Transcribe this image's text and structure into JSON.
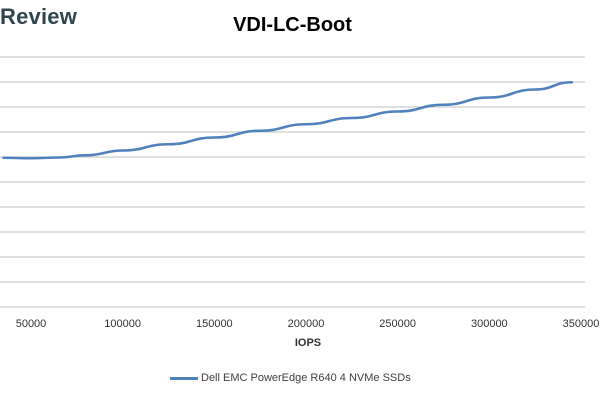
{
  "watermark": "Review",
  "chart_data": {
    "type": "line",
    "title": "VDI-LC-Boot",
    "xlabel": "IOPS",
    "ylabel": "",
    "xlim": [
      35000,
      350000
    ],
    "x_ticks": [
      50000,
      100000,
      150000,
      200000,
      250000,
      300000,
      350000
    ],
    "x_tick_labels": [
      "50000",
      "100000",
      "150000",
      "200000",
      "250000",
      "300000",
      "350000"
    ],
    "y_gridlines": 11,
    "grid": true,
    "legend": "bottom",
    "colors": {
      "series": "#4f81bd",
      "grid": "#bfbfbf"
    },
    "series": [
      {
        "name": "Dell EMC PowerEdge R640 4 NVMe SSDs",
        "x": [
          35000,
          50000,
          65000,
          80000,
          100000,
          125000,
          150000,
          175000,
          200000,
          225000,
          250000,
          275000,
          300000,
          325000,
          345000
        ],
        "y": [
          0.597,
          0.595,
          0.598,
          0.607,
          0.626,
          0.651,
          0.678,
          0.705,
          0.731,
          0.756,
          0.782,
          0.809,
          0.838,
          0.87,
          0.899
        ]
      }
    ]
  }
}
